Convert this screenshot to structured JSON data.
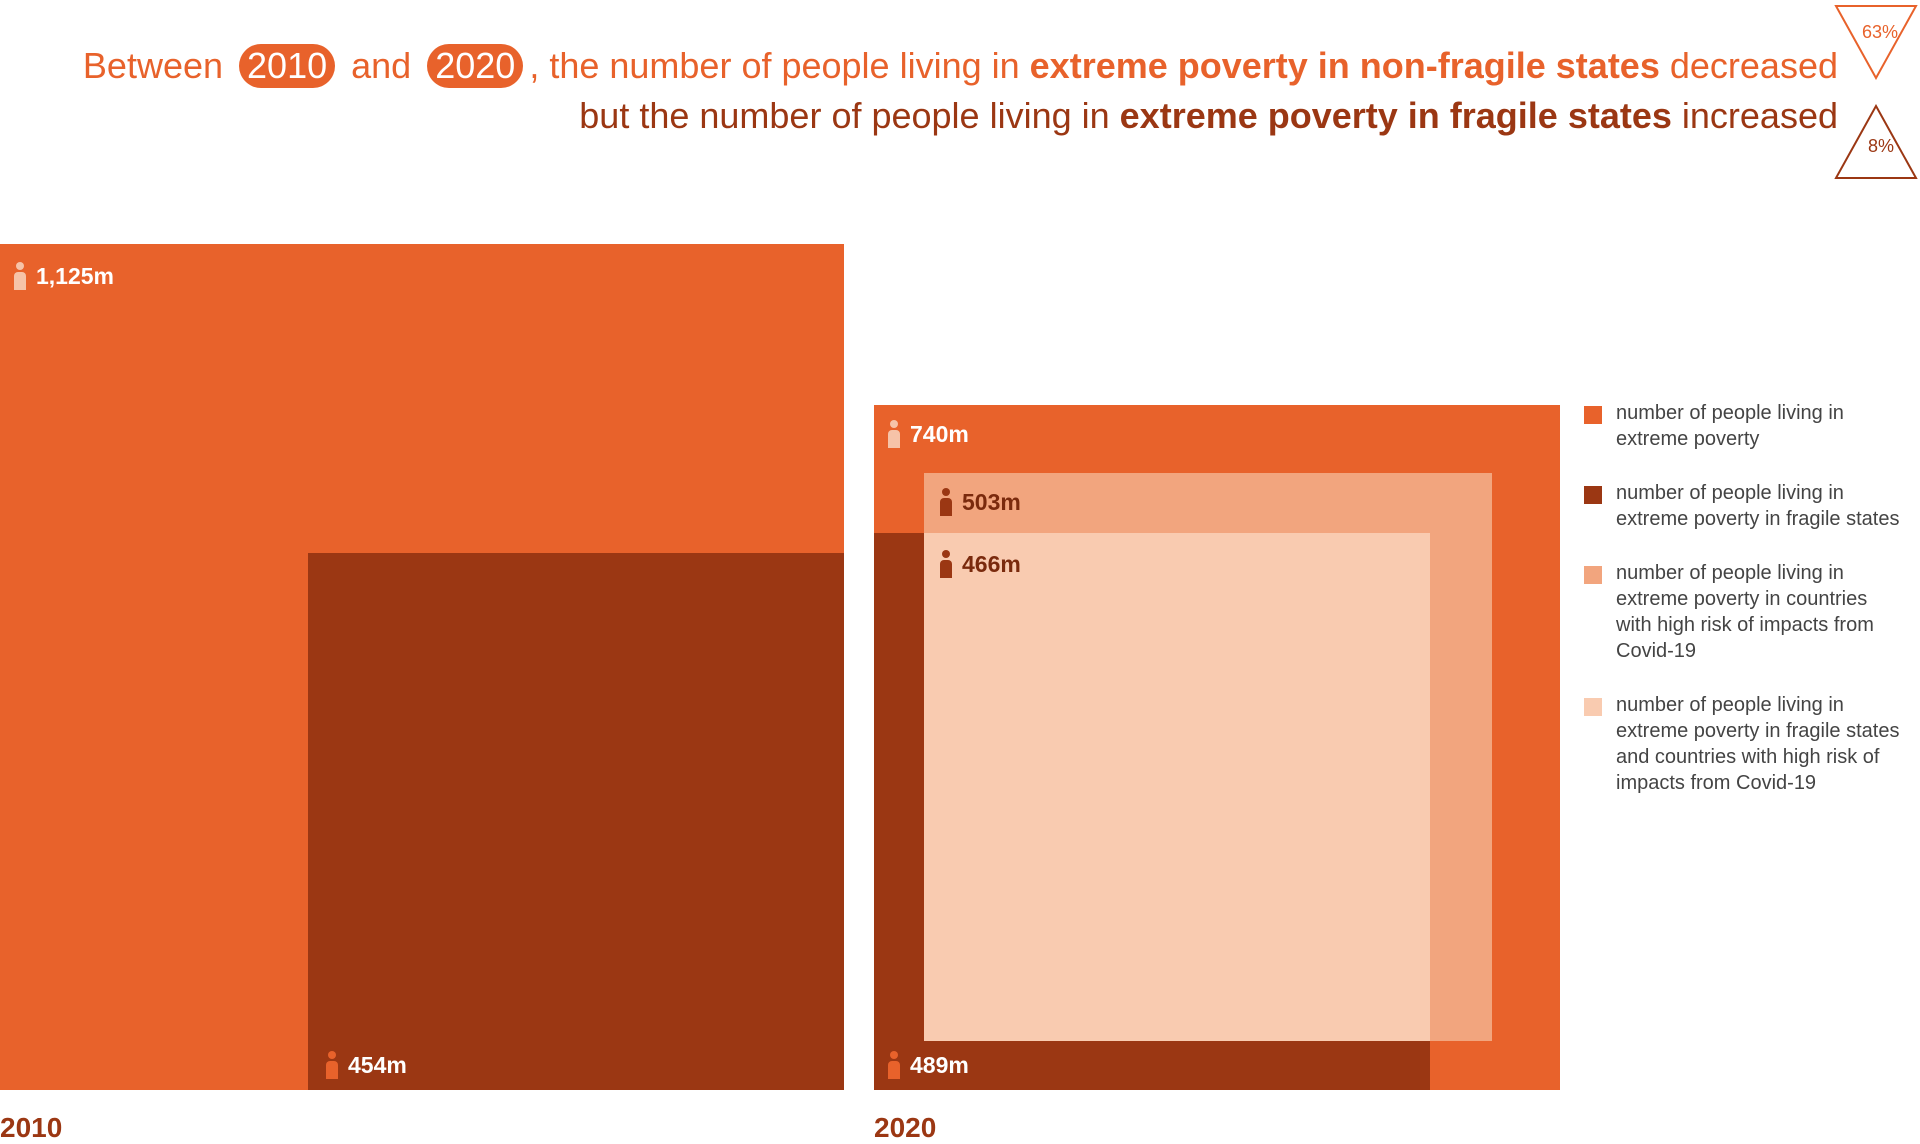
{
  "headline": {
    "line1": {
      "prefix": "Between",
      "year_start": "2010",
      "mid": "and",
      "year_end": "2020",
      "rest": ", the number of people living in",
      "bold": "extreme poverty in non-fragile states",
      "suffix": "decreased"
    },
    "line2": {
      "prefix": "but the number of people living in",
      "bold": "extreme poverty in fragile states",
      "suffix": "increased"
    },
    "decrease_badge": "63%",
    "increase_badge": "8%"
  },
  "colors": {
    "extreme_poverty": "#e8622b",
    "fragile": "#9b3713",
    "covid_risk": "#f2a57e",
    "fragile_and_covid": "#f9cbb0"
  },
  "chart_data": [
    {
      "type": "area",
      "category": "2010",
      "series": [
        {
          "name": "number of people living in extreme poverty",
          "value": 1125,
          "label": "1,125m"
        },
        {
          "name": "number of people living in extreme poverty in fragile states",
          "value": 454,
          "label": "454m"
        }
      ]
    },
    {
      "type": "area",
      "category": "2020",
      "series": [
        {
          "name": "number of people living in extreme poverty",
          "value": 740,
          "label": "740m"
        },
        {
          "name": "number of people living in extreme poverty in fragile states",
          "value": 489,
          "label": "489m"
        },
        {
          "name": "number of people living in extreme poverty in countries with high risk of impacts from Covid-19",
          "value": 503,
          "label": "503m"
        },
        {
          "name": "number of people living in extreme poverty in fragile states and countries with high risk of impacts from Covid-19",
          "value": 466,
          "label": "466m"
        }
      ]
    }
  ],
  "legend": [
    {
      "label": "number of people living in extreme poverty",
      "color": "#e8622b"
    },
    {
      "label": "number of people living in extreme poverty in fragile states",
      "color": "#9b3713"
    },
    {
      "label": "number of people living in extreme poverty in countries with high risk of impacts from Covid-19",
      "color": "#f2a57e"
    },
    {
      "label": "number of people living in extreme poverty in fragile states and countries with high risk of impacts from Covid-19",
      "color": "#f9cbb0"
    }
  ]
}
